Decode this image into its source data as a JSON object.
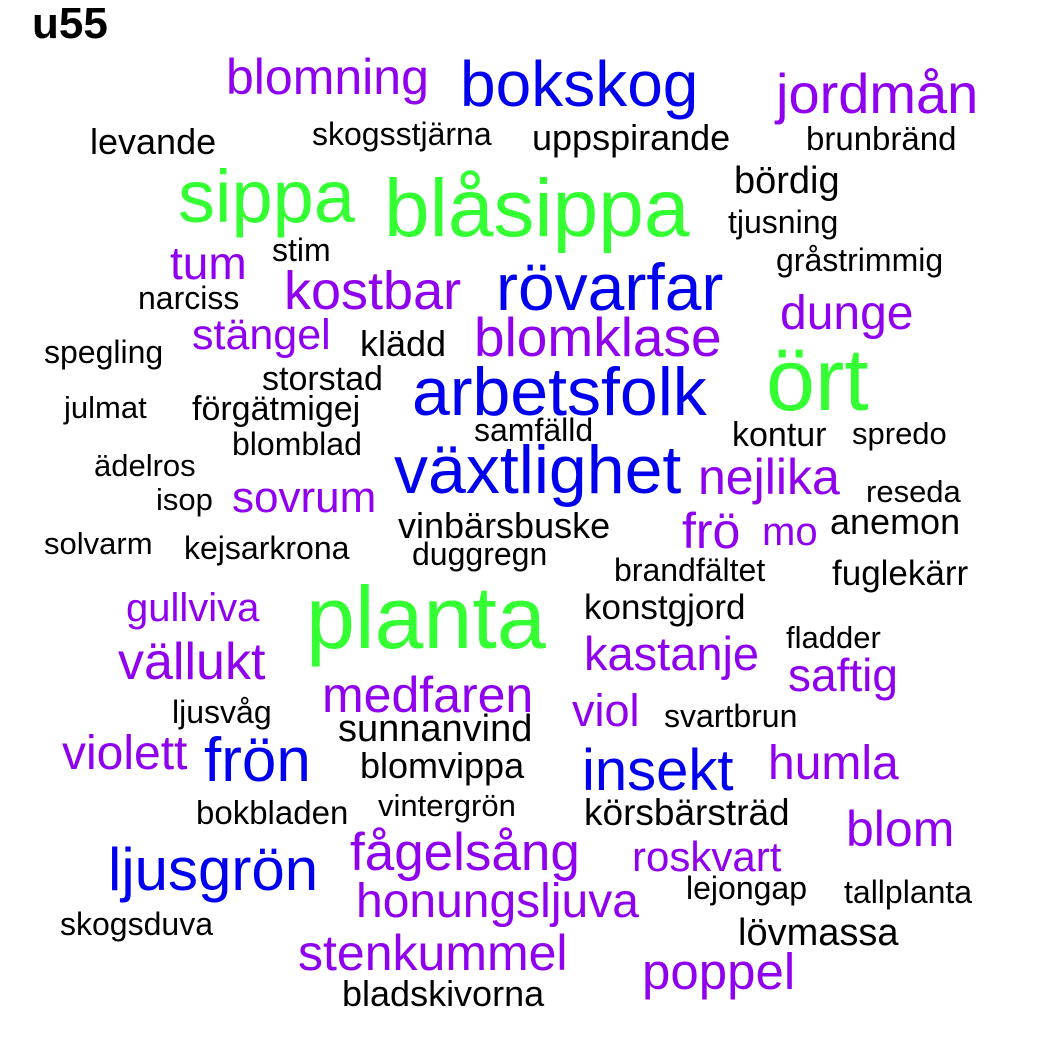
{
  "label": "u55",
  "colors": {
    "green": "#33ff33",
    "blue": "#0000ee",
    "purple": "#8f00ef",
    "black": "#000000"
  },
  "words": [
    {
      "text": "blomning",
      "color": "purple"
    },
    {
      "text": "bokskog",
      "color": "blue"
    },
    {
      "text": "jordmån",
      "color": "purple"
    },
    {
      "text": "levande",
      "color": "black"
    },
    {
      "text": "skogsstjärna",
      "color": "black"
    },
    {
      "text": "uppspirande",
      "color": "black"
    },
    {
      "text": "brunbränd",
      "color": "black"
    },
    {
      "text": "sippa",
      "color": "green"
    },
    {
      "text": "blåsippa",
      "color": "green"
    },
    {
      "text": "bördig",
      "color": "black"
    },
    {
      "text": "tjusning",
      "color": "black"
    },
    {
      "text": "tum",
      "color": "purple"
    },
    {
      "text": "stim",
      "color": "black"
    },
    {
      "text": "gråstrimmig",
      "color": "black"
    },
    {
      "text": "narciss",
      "color": "black"
    },
    {
      "text": "kostbar",
      "color": "purple"
    },
    {
      "text": "rövarfar",
      "color": "blue"
    },
    {
      "text": "dunge",
      "color": "purple"
    },
    {
      "text": "stängel",
      "color": "purple"
    },
    {
      "text": "klädd",
      "color": "black"
    },
    {
      "text": "blomklase",
      "color": "purple"
    },
    {
      "text": "spegling",
      "color": "black"
    },
    {
      "text": "ört",
      "color": "green"
    },
    {
      "text": "storstad",
      "color": "black"
    },
    {
      "text": "arbetsfolk",
      "color": "blue"
    },
    {
      "text": "julmat",
      "color": "black"
    },
    {
      "text": "förgätmigej",
      "color": "black"
    },
    {
      "text": "samfälld",
      "color": "black"
    },
    {
      "text": "kontur",
      "color": "black"
    },
    {
      "text": "spredo",
      "color": "black"
    },
    {
      "text": "blomblad",
      "color": "black"
    },
    {
      "text": "ädelros",
      "color": "black"
    },
    {
      "text": "växtlighet",
      "color": "blue"
    },
    {
      "text": "nejlika",
      "color": "purple"
    },
    {
      "text": "isop",
      "color": "black"
    },
    {
      "text": "sovrum",
      "color": "purple"
    },
    {
      "text": "reseda",
      "color": "black"
    },
    {
      "text": "vinbärsbuske",
      "color": "black"
    },
    {
      "text": "frö",
      "color": "purple"
    },
    {
      "text": "mo",
      "color": "purple"
    },
    {
      "text": "anemon",
      "color": "black"
    },
    {
      "text": "solvarm",
      "color": "black"
    },
    {
      "text": "kejsarkrona",
      "color": "black"
    },
    {
      "text": "duggregn",
      "color": "black"
    },
    {
      "text": "brandfältet",
      "color": "black"
    },
    {
      "text": "fuglekärr",
      "color": "black"
    },
    {
      "text": "gullviva",
      "color": "purple"
    },
    {
      "text": "planta",
      "color": "green"
    },
    {
      "text": "konstgjord",
      "color": "black"
    },
    {
      "text": "fladder",
      "color": "black"
    },
    {
      "text": "vällukt",
      "color": "purple"
    },
    {
      "text": "kastanje",
      "color": "purple"
    },
    {
      "text": "saftig",
      "color": "purple"
    },
    {
      "text": "medfaren",
      "color": "purple"
    },
    {
      "text": "ljusvåg",
      "color": "black"
    },
    {
      "text": "viol",
      "color": "purple"
    },
    {
      "text": "svartbrun",
      "color": "black"
    },
    {
      "text": "sunnanvind",
      "color": "black"
    },
    {
      "text": "violett",
      "color": "purple"
    },
    {
      "text": "frön",
      "color": "blue"
    },
    {
      "text": "blomvippa",
      "color": "black"
    },
    {
      "text": "insekt",
      "color": "blue"
    },
    {
      "text": "humla",
      "color": "purple"
    },
    {
      "text": "bokbladen",
      "color": "black"
    },
    {
      "text": "vintergrön",
      "color": "black"
    },
    {
      "text": "körsbärsträd",
      "color": "black"
    },
    {
      "text": "blom",
      "color": "purple"
    },
    {
      "text": "fågelsång",
      "color": "purple"
    },
    {
      "text": "roskvart",
      "color": "purple"
    },
    {
      "text": "ljusgrön",
      "color": "blue"
    },
    {
      "text": "lejongap",
      "color": "black"
    },
    {
      "text": "tallplanta",
      "color": "black"
    },
    {
      "text": "honungsljuva",
      "color": "purple"
    },
    {
      "text": "skogsduva",
      "color": "black"
    },
    {
      "text": "lövmassa",
      "color": "black"
    },
    {
      "text": "stenkummel",
      "color": "purple"
    },
    {
      "text": "poppel",
      "color": "purple"
    },
    {
      "text": "bladskivorna",
      "color": "black"
    }
  ]
}
